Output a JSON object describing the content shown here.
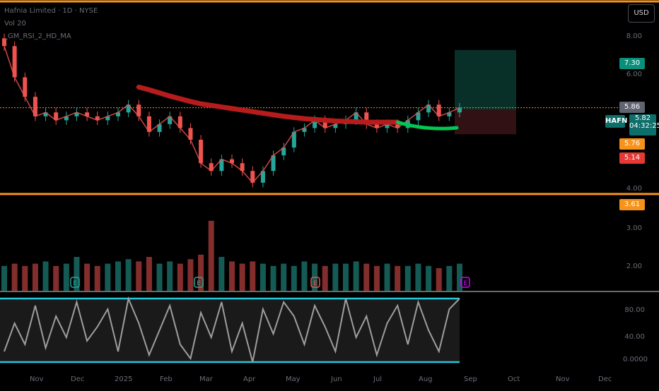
{
  "header": {
    "symbol_line": "Hafnia Limited · 1D · NYSE",
    "indicator_1": "Vol 20",
    "indicator_2": "_GM_RSI_2_HD_MA",
    "currency_button": "USD"
  },
  "price_axis": {
    "labels": [
      "8.00",
      "6.00",
      "4.00"
    ],
    "tags": {
      "target": "7.30",
      "high": "5.86",
      "last": "5.82",
      "countdown": "04:32:25",
      "entry": "5.76",
      "stop": "5.14",
      "support": "3.61"
    },
    "ticker": "HAFN"
  },
  "volume_axis": {
    "labels": [
      "3.00",
      "2.00"
    ]
  },
  "rsi_axis": {
    "labels": [
      "80.00",
      "40.00",
      "0.0000"
    ]
  },
  "time_axis": {
    "months": [
      "Nov",
      "Dec",
      "2025",
      "Feb",
      "Mar",
      "Apr",
      "May",
      "Jun",
      "Jul",
      "Aug",
      "Sep",
      "Oct",
      "Nov",
      "Dec"
    ]
  },
  "colors": {
    "up": "#26a69a",
    "down": "#ef5350",
    "ma_red": "#b71c1c",
    "ma_green": "#00c853",
    "orange": "#f7931a",
    "cyan": "#26c6da",
    "rsi": "#9e9e9e",
    "event_purple": "#d500f9"
  },
  "events": {
    "earnings_marker": "E",
    "dividend_marker": "D"
  },
  "chart_data": {
    "type": "candlestick",
    "symbol": "HAFN",
    "x": [
      "2024-10-15",
      "2024-10-22",
      "2024-10-29",
      "2024-11-05",
      "2024-11-12",
      "2024-11-19",
      "2024-11-26",
      "2024-12-03",
      "2024-12-10",
      "2024-12-17",
      "2024-12-24",
      "2024-12-31",
      "2025-01-07",
      "2025-01-14",
      "2025-01-21",
      "2025-01-28",
      "2025-02-04",
      "2025-02-11",
      "2025-02-18",
      "2025-02-25",
      "2025-03-04",
      "2025-03-11",
      "2025-03-18",
      "2025-03-25",
      "2025-04-01",
      "2025-04-08",
      "2025-04-15",
      "2025-04-22",
      "2025-04-29",
      "2025-05-06",
      "2025-05-13",
      "2025-05-20",
      "2025-05-27",
      "2025-06-03",
      "2025-06-10",
      "2025-06-17",
      "2025-06-24",
      "2025-07-01",
      "2025-07-08",
      "2025-07-15",
      "2025-07-22",
      "2025-07-29",
      "2025-08-05",
      "2025-08-12",
      "2025-08-19"
    ],
    "close": [
      7.4,
      6.6,
      6.1,
      5.6,
      5.7,
      5.5,
      5.6,
      5.7,
      5.6,
      5.5,
      5.6,
      5.7,
      5.9,
      5.6,
      5.2,
      5.4,
      5.6,
      5.3,
      5.0,
      4.4,
      4.2,
      4.5,
      4.4,
      4.2,
      3.9,
      4.2,
      4.6,
      4.8,
      5.2,
      5.3,
      5.5,
      5.3,
      5.4,
      5.5,
      5.7,
      5.4,
      5.3,
      5.4,
      5.3,
      5.5,
      5.7,
      5.9,
      5.6,
      5.7,
      5.82
    ],
    "ma_200": [
      null,
      null,
      null,
      null,
      null,
      null,
      null,
      null,
      null,
      null,
      null,
      null,
      null,
      6.35,
      6.28,
      6.2,
      6.12,
      6.05,
      5.98,
      5.92,
      5.88,
      5.84,
      5.8,
      5.76,
      5.72,
      5.68,
      5.64,
      5.6,
      5.57,
      5.54,
      5.52,
      5.5,
      5.48,
      5.47,
      5.46,
      5.45,
      5.45,
      5.45,
      5.45,
      null,
      null,
      null,
      null,
      null,
      null
    ],
    "horizontal_lines": [
      5.82,
      3.61
    ],
    "position": {
      "entry": 5.76,
      "target": 7.3,
      "stop": 5.14
    },
    "ylim": [
      3.3,
      8.4
    ],
    "volume_ylim": [
      0,
      3.5
    ],
    "rsi_ylim": [
      0,
      100
    ],
    "rsi_levels": [
      95,
      5
    ],
    "volume": [
      1.1,
      1.2,
      1.1,
      1.2,
      1.3,
      1.1,
      1.2,
      1.5,
      1.2,
      1.1,
      1.2,
      1.3,
      1.4,
      1.3,
      1.5,
      1.2,
      1.3,
      1.2,
      1.4,
      1.6,
      3.1,
      1.5,
      1.3,
      1.2,
      1.3,
      1.2,
      1.1,
      1.2,
      1.1,
      1.3,
      1.2,
      1.1,
      1.2,
      1.2,
      1.3,
      1.2,
      1.1,
      1.2,
      1.1,
      1.1,
      1.2,
      1.1,
      1.0,
      1.1,
      1.2
    ],
    "rsi": [
      20,
      60,
      30,
      85,
      25,
      70,
      40,
      90,
      35,
      55,
      80,
      20,
      95,
      60,
      15,
      50,
      85,
      30,
      10,
      75,
      40,
      90,
      20,
      60,
      5,
      80,
      45,
      90,
      70,
      30,
      85,
      55,
      20,
      95,
      40,
      70,
      15,
      60,
      85,
      30,
      90,
      50,
      20,
      80,
      95
    ]
  }
}
